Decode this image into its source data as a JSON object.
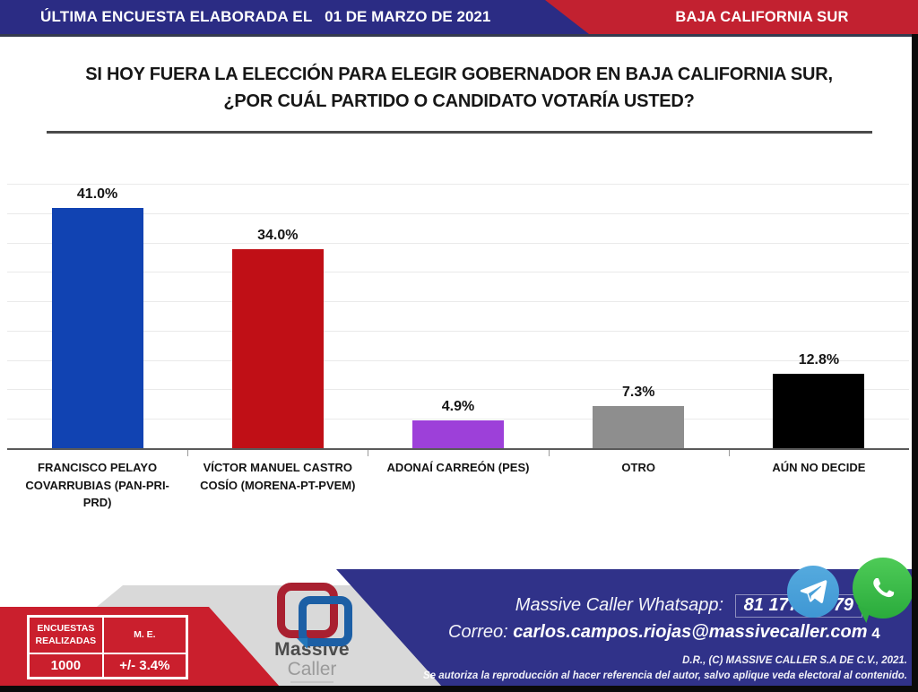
{
  "header": {
    "survey_label": "ÚLTIMA ENCUESTA ELABORADA EL",
    "survey_date": "01 DE MARZO DE 2021",
    "region": "BAJA CALIFORNIA SUR"
  },
  "question": {
    "line1": "SI HOY FUERA LA ELECCIÓN PARA ELEGIR GOBERNADOR EN BAJA CALIFORNIA SUR,",
    "line2": "¿POR CUÁL PARTIDO O CANDIDATO VOTARÍA USTED?"
  },
  "chart_data": {
    "type": "bar",
    "categories": [
      "FRANCISCO PELAYO COVARRUBIAS (PAN-PRI-PRD)",
      "VÍCTOR MANUEL CASTRO COSÍO (MORENA-PT-PVEM)",
      "ADONAÍ CARREÓN (PES)",
      "OTRO",
      "AÚN NO DECIDE"
    ],
    "values": [
      41.0,
      34.0,
      4.9,
      7.3,
      12.8
    ],
    "value_labels": [
      "41.0%",
      "34.0%",
      "4.9%",
      "7.3%",
      "12.8%"
    ],
    "bar_colors": [
      "#1143b2",
      "#c00f16",
      "#9d40d9",
      "#8e8e8e",
      "#000000"
    ],
    "title": "",
    "xlabel": "",
    "ylabel": "",
    "ylim": [
      0,
      45
    ],
    "grid": true,
    "grid_step": 5,
    "legend": false
  },
  "stats": {
    "col1_header": "ENCUESTAS REALIZADAS",
    "col2_header": "M. E.",
    "col1_value": "1000",
    "col2_value": "+/- 3.4%"
  },
  "logo": {
    "name_top": "Massive",
    "name_bottom": "Caller"
  },
  "contact": {
    "whatsapp_label": "Massive Caller Whatsapp:",
    "whatsapp_number": "81 1778 1079",
    "email_label": "Correo:",
    "email": "carlos.campos.riojas@massivecaller.com",
    "page_number": "4",
    "copyright": "D.R., (C) MASSIVE CALLER S.A DE C.V., 2021.",
    "disclaimer": "Se autoriza la reproducción al hacer referencia del autor, salvo aplique veda electoral al contenido."
  },
  "icons": {
    "telegram": "telegram-icon",
    "whatsapp": "whatsapp-icon"
  },
  "colors": {
    "topbar_blue": "#2b2c84",
    "topbar_red": "#c22130",
    "footer_blue": "#303289",
    "footer_red": "#ca1f2d",
    "footer_gray": "#d9d9d9",
    "telegram_blue": "#49a2dc",
    "whatsapp_green": "#3dbb4a",
    "gridline": "#eaeaea",
    "axis": "#5a5a5a"
  }
}
